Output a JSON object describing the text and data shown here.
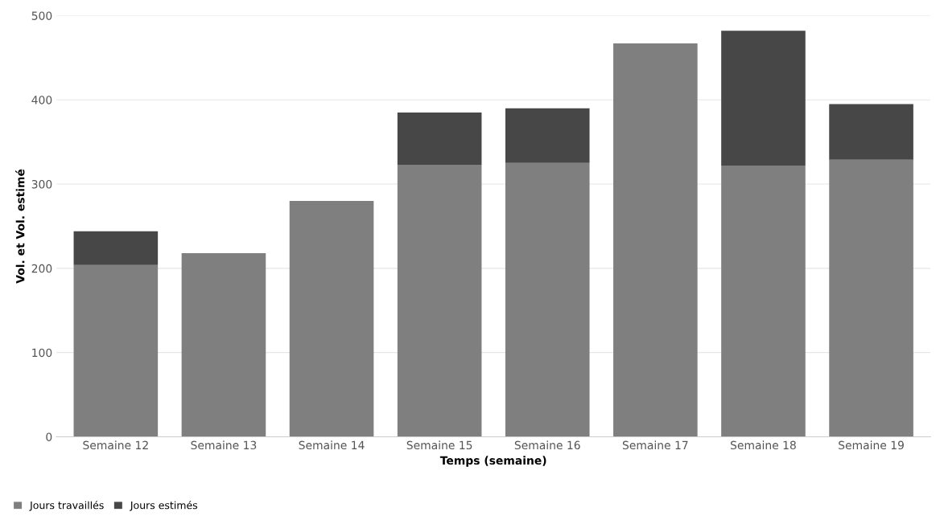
{
  "chart_data": {
    "type": "bar",
    "stacked": true,
    "xlabel": "Temps (semaine)",
    "ylabel": "Vol. et Vol. estimé",
    "categories": [
      "Semaine 12",
      "Semaine 13",
      "Semaine 14",
      "Semaine 15",
      "Semaine 16",
      "Semaine 17",
      "Semaine 18",
      "Semaine 19"
    ],
    "series": [
      {
        "name": "Jours travaillés",
        "color": "#7f7f7f",
        "values": [
          204,
          218,
          280,
          323,
          325,
          467,
          322,
          329
        ]
      },
      {
        "name": "Jours estimés",
        "color": "#474747",
        "values": [
          40,
          null,
          null,
          62,
          65,
          null,
          160,
          66
        ]
      }
    ],
    "ylim": [
      0,
      500
    ],
    "yticks": [
      0,
      100,
      200,
      300,
      400,
      500
    ],
    "grid": "y",
    "legend": "bottom left"
  }
}
